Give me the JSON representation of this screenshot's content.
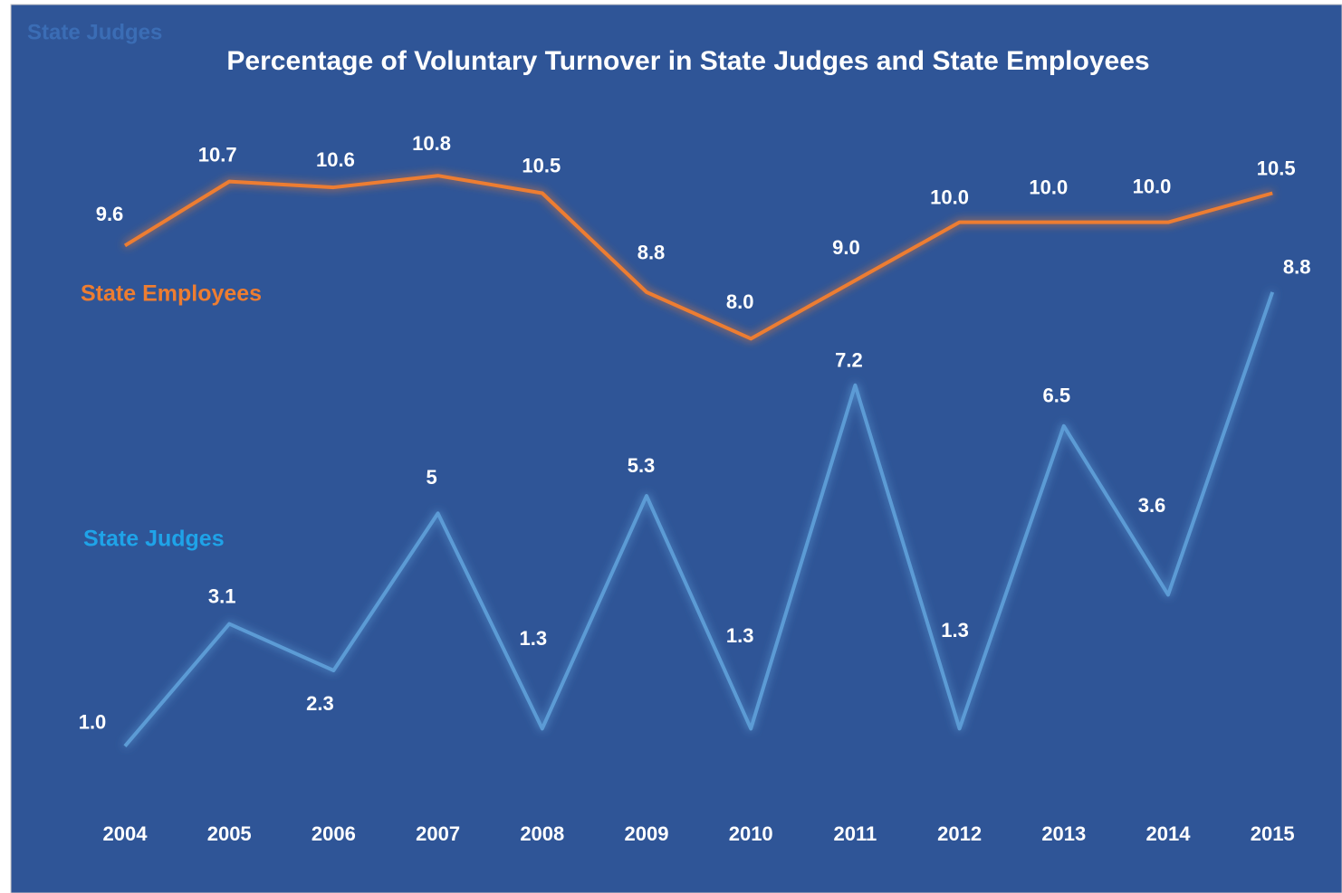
{
  "chart_data": {
    "type": "line",
    "title": "Percentage of Voluntary Turnover in State Judges and State Employees",
    "corner_label": "State Judges",
    "categories": [
      "2004",
      "2005",
      "2006",
      "2007",
      "2008",
      "2009",
      "2010",
      "2011",
      "2012",
      "2013",
      "2014",
      "2015"
    ],
    "series": [
      {
        "name": "State Employees",
        "color": "#ed7d31",
        "values": [
          9.6,
          10.7,
          10.6,
          10.8,
          10.5,
          8.8,
          8.0,
          9.0,
          10.0,
          10.0,
          10.0,
          10.5
        ],
        "value_labels": [
          "9.6",
          "10.7",
          "10.6",
          "10.8",
          "10.5",
          "8.8",
          "8.0",
          "9.0",
          "10.0",
          "10.0",
          "10.0",
          "10.5"
        ]
      },
      {
        "name": "State Judges",
        "color": "#5b9bd5",
        "values": [
          1.0,
          3.1,
          2.3,
          5,
          1.3,
          5.3,
          1.3,
          7.2,
          1.3,
          6.5,
          3.6,
          8.8
        ],
        "value_labels": [
          "1.0",
          "3.1",
          "2.3",
          "5",
          "1.3",
          "5.3",
          "1.3",
          "7.2",
          "1.3",
          "6.5",
          "3.6",
          "8.8"
        ]
      }
    ],
    "ylim": [
      0,
      12
    ]
  }
}
